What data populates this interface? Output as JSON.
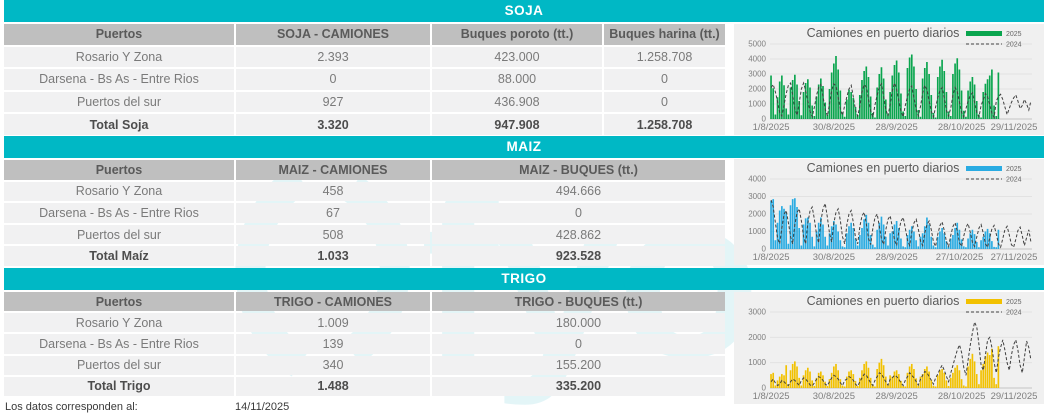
{
  "footer": {
    "label": "Los datos corresponden al:",
    "date": "14/11/2025"
  },
  "watermark_text": "fyo",
  "colors": {
    "teal": "#00b8c5",
    "header_gray": "#bfbfbf",
    "row_bg": "#f1f1f2",
    "soja_green": "#0aa54e",
    "maiz_blue": "#29abe2",
    "trigo_yellow": "#f2c100",
    "line_2024": "#3f3f3f"
  },
  "sections": [
    {
      "title": "SOJA",
      "columns": [
        "Puertos",
        "SOJA - CAMIONES",
        "Buques poroto (tt.)",
        "Buques harina (tt.)"
      ],
      "rows": [
        [
          "Rosario Y Zona",
          "2.393",
          "423.000",
          "1.258.708"
        ],
        [
          "Darsena - Bs As - Entre Rios",
          "0",
          "88.000",
          "0"
        ],
        [
          "Puertos del sur",
          "927",
          "436.908",
          "0"
        ],
        [
          "Total Soja",
          "3.320",
          "947.908",
          "1.258.708"
        ]
      ]
    },
    {
      "title": "MAIZ",
      "columns": [
        "Puertos",
        "MAIZ - CAMIONES",
        "MAIZ - BUQUES (tt.)"
      ],
      "rows": [
        [
          "Rosario Y Zona",
          "458",
          "494.666"
        ],
        [
          "Darsena - Bs As - Entre Rios",
          "67",
          "0"
        ],
        [
          "Puertos del sur",
          "508",
          "428.862"
        ],
        [
          "Total Maíz",
          "1.033",
          "923.528"
        ]
      ]
    },
    {
      "title": "TRIGO",
      "columns": [
        "Puertos",
        "TRIGO - CAMIONES",
        "TRIGO - BUQUES (tt.)"
      ],
      "rows": [
        [
          "Rosario Y Zona",
          "1.009",
          "180.000"
        ],
        [
          "Darsena - Bs As - Entre Rios",
          "139",
          "0"
        ],
        [
          "Puertos del sur",
          "340",
          "155.200"
        ],
        [
          "Total Trigo",
          "1.488",
          "335.200"
        ]
      ]
    }
  ],
  "chart_data": [
    {
      "type": "bar",
      "section": "SOJA",
      "title": "Camiones en puerto diarios",
      "legend": [
        "2025",
        "2024"
      ],
      "legend_position": "top-right",
      "bar_color": "#0aa54e",
      "line_color": "#3f3f3f",
      "grid": true,
      "ylim": [
        0,
        5000
      ],
      "ytick_step": 1000,
      "x_slots": 121,
      "xticks": [
        {
          "label": "1/8/2025",
          "day": 0
        },
        {
          "label": "30/8/2025",
          "day": 29
        },
        {
          "label": "28/9/2025",
          "day": 58
        },
        {
          "label": "28/10/2025",
          "day": 88
        },
        {
          "label": "29/11/2025",
          "day": 120
        }
      ],
      "series": [
        {
          "name": "2025",
          "type": "bar",
          "values": [
            2900,
            2050,
            300,
            1450,
            2500,
            2900,
            2250,
            700,
            300,
            2100,
            2600,
            2950,
            2300,
            1200,
            250,
            1800,
            2400,
            2650,
            2100,
            900,
            200,
            1500,
            2300,
            2700,
            2200,
            1100,
            300,
            2000,
            3100,
            3700,
            4200,
            3300,
            1900,
            450,
            150,
            1300,
            1950,
            1800,
            1400,
            800,
            250,
            1600,
            2600,
            3200,
            3500,
            2800,
            1500,
            400,
            100,
            2100,
            3000,
            3450,
            2700,
            1300,
            350,
            1800,
            2900,
            3600,
            3900,
            3100,
            1700,
            500,
            200,
            3400,
            4100,
            4300,
            3500,
            2000,
            600,
            150,
            2700,
            3400,
            3800,
            3000,
            1600,
            400,
            100,
            2800,
            3500,
            3950,
            3200,
            1800,
            500,
            200,
            3000,
            3700,
            4050,
            3300,
            1900,
            550,
            150,
            1900,
            2500,
            2800,
            2300,
            1200,
            300,
            100,
            1800,
            2350,
            2650,
            2900,
            3300,
            900,
            200,
            3100
          ]
        },
        {
          "name": "2024",
          "type": "line",
          "values": [
            2100,
            2300,
            1800,
            1150,
            450,
            200,
            950,
            1700,
            2250,
            2400,
            1600,
            700,
            250,
            1100,
            2000,
            2400,
            1900,
            1200,
            500,
            150,
            800,
            1600,
            2100,
            2300,
            1500,
            650,
            200,
            1000,
            1900,
            2350,
            2200,
            1400,
            600,
            250,
            900,
            1500,
            2000,
            2250,
            1450,
            600,
            200,
            850,
            1800,
            2300,
            2100,
            1300,
            550,
            150,
            950,
            1600,
            2150,
            2350,
            1500,
            650,
            200,
            1000,
            1900,
            2400,
            2000,
            1250,
            500,
            150,
            900,
            1500,
            2000,
            2200,
            1400,
            600,
            200,
            850,
            1700,
            2250,
            1950,
            1200,
            500,
            150,
            800,
            1400,
            1900,
            2100,
            1350,
            550,
            200,
            750,
            1600,
            2100,
            1800,
            1100,
            450,
            150,
            700,
            1200,
            1600,
            1750,
            1100,
            450,
            150,
            900,
            1300,
            1700,
            1500,
            950,
            400,
            100,
            1200,
            1500,
            1650,
            1300,
            800,
            300,
            700,
            1100,
            1400,
            1600,
            1200,
            700,
            900,
            1300,
            1000,
            600,
            1200
          ]
        }
      ]
    },
    {
      "type": "bar",
      "section": "MAIZ",
      "title": "Camiones en puerto diarios",
      "legend": [
        "2025",
        "2024"
      ],
      "legend_position": "top-right",
      "bar_color": "#29abe2",
      "line_color": "#3f3f3f",
      "grid": true,
      "ylim": [
        0,
        4000
      ],
      "ytick_step": 1000,
      "x_slots": 121,
      "xticks": [
        {
          "label": "1/8/2025",
          "day": 0
        },
        {
          "label": "30/8/2025",
          "day": 29
        },
        {
          "label": "28/9/2025",
          "day": 58
        },
        {
          "label": "27/10/2025",
          "day": 87
        },
        {
          "label": "27/11/2025",
          "day": 118
        }
      ],
      "series": [
        {
          "name": "2025",
          "type": "bar",
          "values": [
            2750,
            2850,
            500,
            1500,
            2200,
            2450,
            2300,
            2100,
            300,
            2500,
            2850,
            2900,
            2400,
            1200,
            200,
            1400,
            1750,
            1800,
            1500,
            700,
            150,
            1000,
            1500,
            1800,
            1400,
            700,
            200,
            900,
            1300,
            1600,
            1400,
            1000,
            500,
            150,
            100,
            900,
            1300,
            1500,
            1200,
            600,
            200,
            800,
            1200,
            1700,
            1950,
            1500,
            800,
            250,
            100,
            1100,
            1500,
            1850,
            1400,
            700,
            200,
            900,
            1000,
            1400,
            1600,
            1200,
            600,
            150,
            100,
            800,
            1100,
            1300,
            1000,
            500,
            150,
            700,
            900,
            1300,
            1800,
            1400,
            700,
            200,
            100,
            700,
            1000,
            1200,
            900,
            450,
            150,
            600,
            800,
            1200,
            1500,
            1100,
            550,
            150,
            100,
            600,
            900,
            1100,
            850,
            400,
            100,
            500,
            700,
            1000,
            1150,
            900,
            450,
            120,
            100,
            1100
          ]
        },
        {
          "name": "2024",
          "type": "line",
          "values": [
            2800,
            2400,
            1500,
            600,
            300,
            1200,
            2000,
            2200,
            1500,
            700,
            300,
            1400,
            2100,
            2300,
            1600,
            700,
            300,
            1500,
            2200,
            2400,
            1700,
            800,
            350,
            1600,
            2300,
            2600,
            1800,
            900,
            400,
            1500,
            2100,
            2300,
            1600,
            700,
            300,
            1400,
            2000,
            2200,
            1500,
            650,
            300,
            1300,
            1900,
            2100,
            1400,
            600,
            250,
            1200,
            1800,
            2000,
            1300,
            550,
            250,
            1100,
            1700,
            1900,
            1250,
            500,
            200,
            1000,
            1600,
            1800,
            1200,
            500,
            200,
            950,
            1500,
            1700,
            1150,
            450,
            200,
            900,
            1400,
            1600,
            1100,
            400,
            150,
            850,
            1350,
            1550,
            1050,
            400,
            150,
            800,
            1300,
            1500,
            1000,
            350,
            150,
            750,
            1250,
            1450,
            950,
            350,
            150,
            700,
            1200,
            1400,
            900,
            300,
            100,
            650,
            1150,
            1350,
            850,
            300,
            100,
            600,
            1100,
            1300,
            800,
            250,
            100,
            550,
            1050,
            1250,
            750,
            200,
            650,
            1100,
            400
          ]
        }
      ]
    },
    {
      "type": "bar",
      "section": "TRIGO",
      "title": "Camiones en puerto diarios",
      "legend": [
        "2025",
        "2024"
      ],
      "legend_position": "top-right",
      "bar_color": "#f2c100",
      "line_color": "#3f3f3f",
      "grid": true,
      "ylim": [
        0,
        3000
      ],
      "ytick_step": 1000,
      "x_slots": 121,
      "xticks": [
        {
          "label": "1/8/2025",
          "day": 0
        },
        {
          "label": "30/8/2025",
          "day": 29
        },
        {
          "label": "28/9/2025",
          "day": 58
        },
        {
          "label": "28/10/2025",
          "day": 88
        },
        {
          "label": "29/11/2025",
          "day": 120
        }
      ],
      "series": [
        {
          "name": "2025",
          "type": "bar",
          "values": [
            550,
            600,
            100,
            300,
            450,
            550,
            500,
            900,
            150,
            700,
            950,
            1050,
            850,
            400,
            100,
            500,
            700,
            800,
            650,
            300,
            80,
            400,
            600,
            650,
            500,
            250,
            80,
            350,
            600,
            850,
            950,
            700,
            350,
            100,
            60,
            450,
            650,
            700,
            550,
            280,
            80,
            400,
            700,
            950,
            1050,
            800,
            400,
            120,
            60,
            750,
            1000,
            1150,
            900,
            450,
            130,
            500,
            450,
            650,
            700,
            550,
            280,
            80,
            60,
            600,
            850,
            950,
            750,
            380,
            100,
            450,
            550,
            750,
            850,
            650,
            330,
            90,
            60,
            500,
            700,
            750,
            600,
            300,
            80,
            400,
            600,
            800,
            900,
            700,
            350,
            100,
            60,
            850,
            1150,
            1350,
            1050,
            550,
            150,
            700,
            950,
            1250,
            1400,
            1300,
            1550,
            400,
            150,
            1650
          ]
        },
        {
          "name": "2024",
          "type": "line",
          "values": [
            250,
            350,
            200,
            100,
            150,
            300,
            250,
            150,
            100,
            250,
            350,
            300,
            200,
            100,
            300,
            400,
            350,
            250,
            120,
            80,
            200,
            350,
            450,
            400,
            300,
            150,
            100,
            250,
            400,
            500,
            450,
            350,
            200,
            100,
            300,
            350,
            450,
            400,
            300,
            150,
            80,
            250,
            400,
            550,
            500,
            350,
            200,
            100,
            300,
            450,
            600,
            550,
            400,
            250,
            120,
            350,
            400,
            500,
            450,
            350,
            200,
            100,
            300,
            450,
            600,
            500,
            400,
            250,
            120,
            350,
            500,
            650,
            600,
            450,
            300,
            150,
            400,
            550,
            750,
            900,
            700,
            450,
            250,
            600,
            900,
            1200,
            1500,
            1700,
            1400,
            800,
            500,
            1100,
            1700,
            2200,
            2600,
            2400,
            1700,
            900,
            700,
            1300,
            1900,
            2000,
            1600,
            1000,
            600,
            1200,
            1600,
            1900,
            1500,
            1000,
            700,
            1300,
            1700,
            1900,
            1500,
            900,
            600,
            1200,
            1850,
            1600,
            1100
          ]
        }
      ]
    }
  ]
}
